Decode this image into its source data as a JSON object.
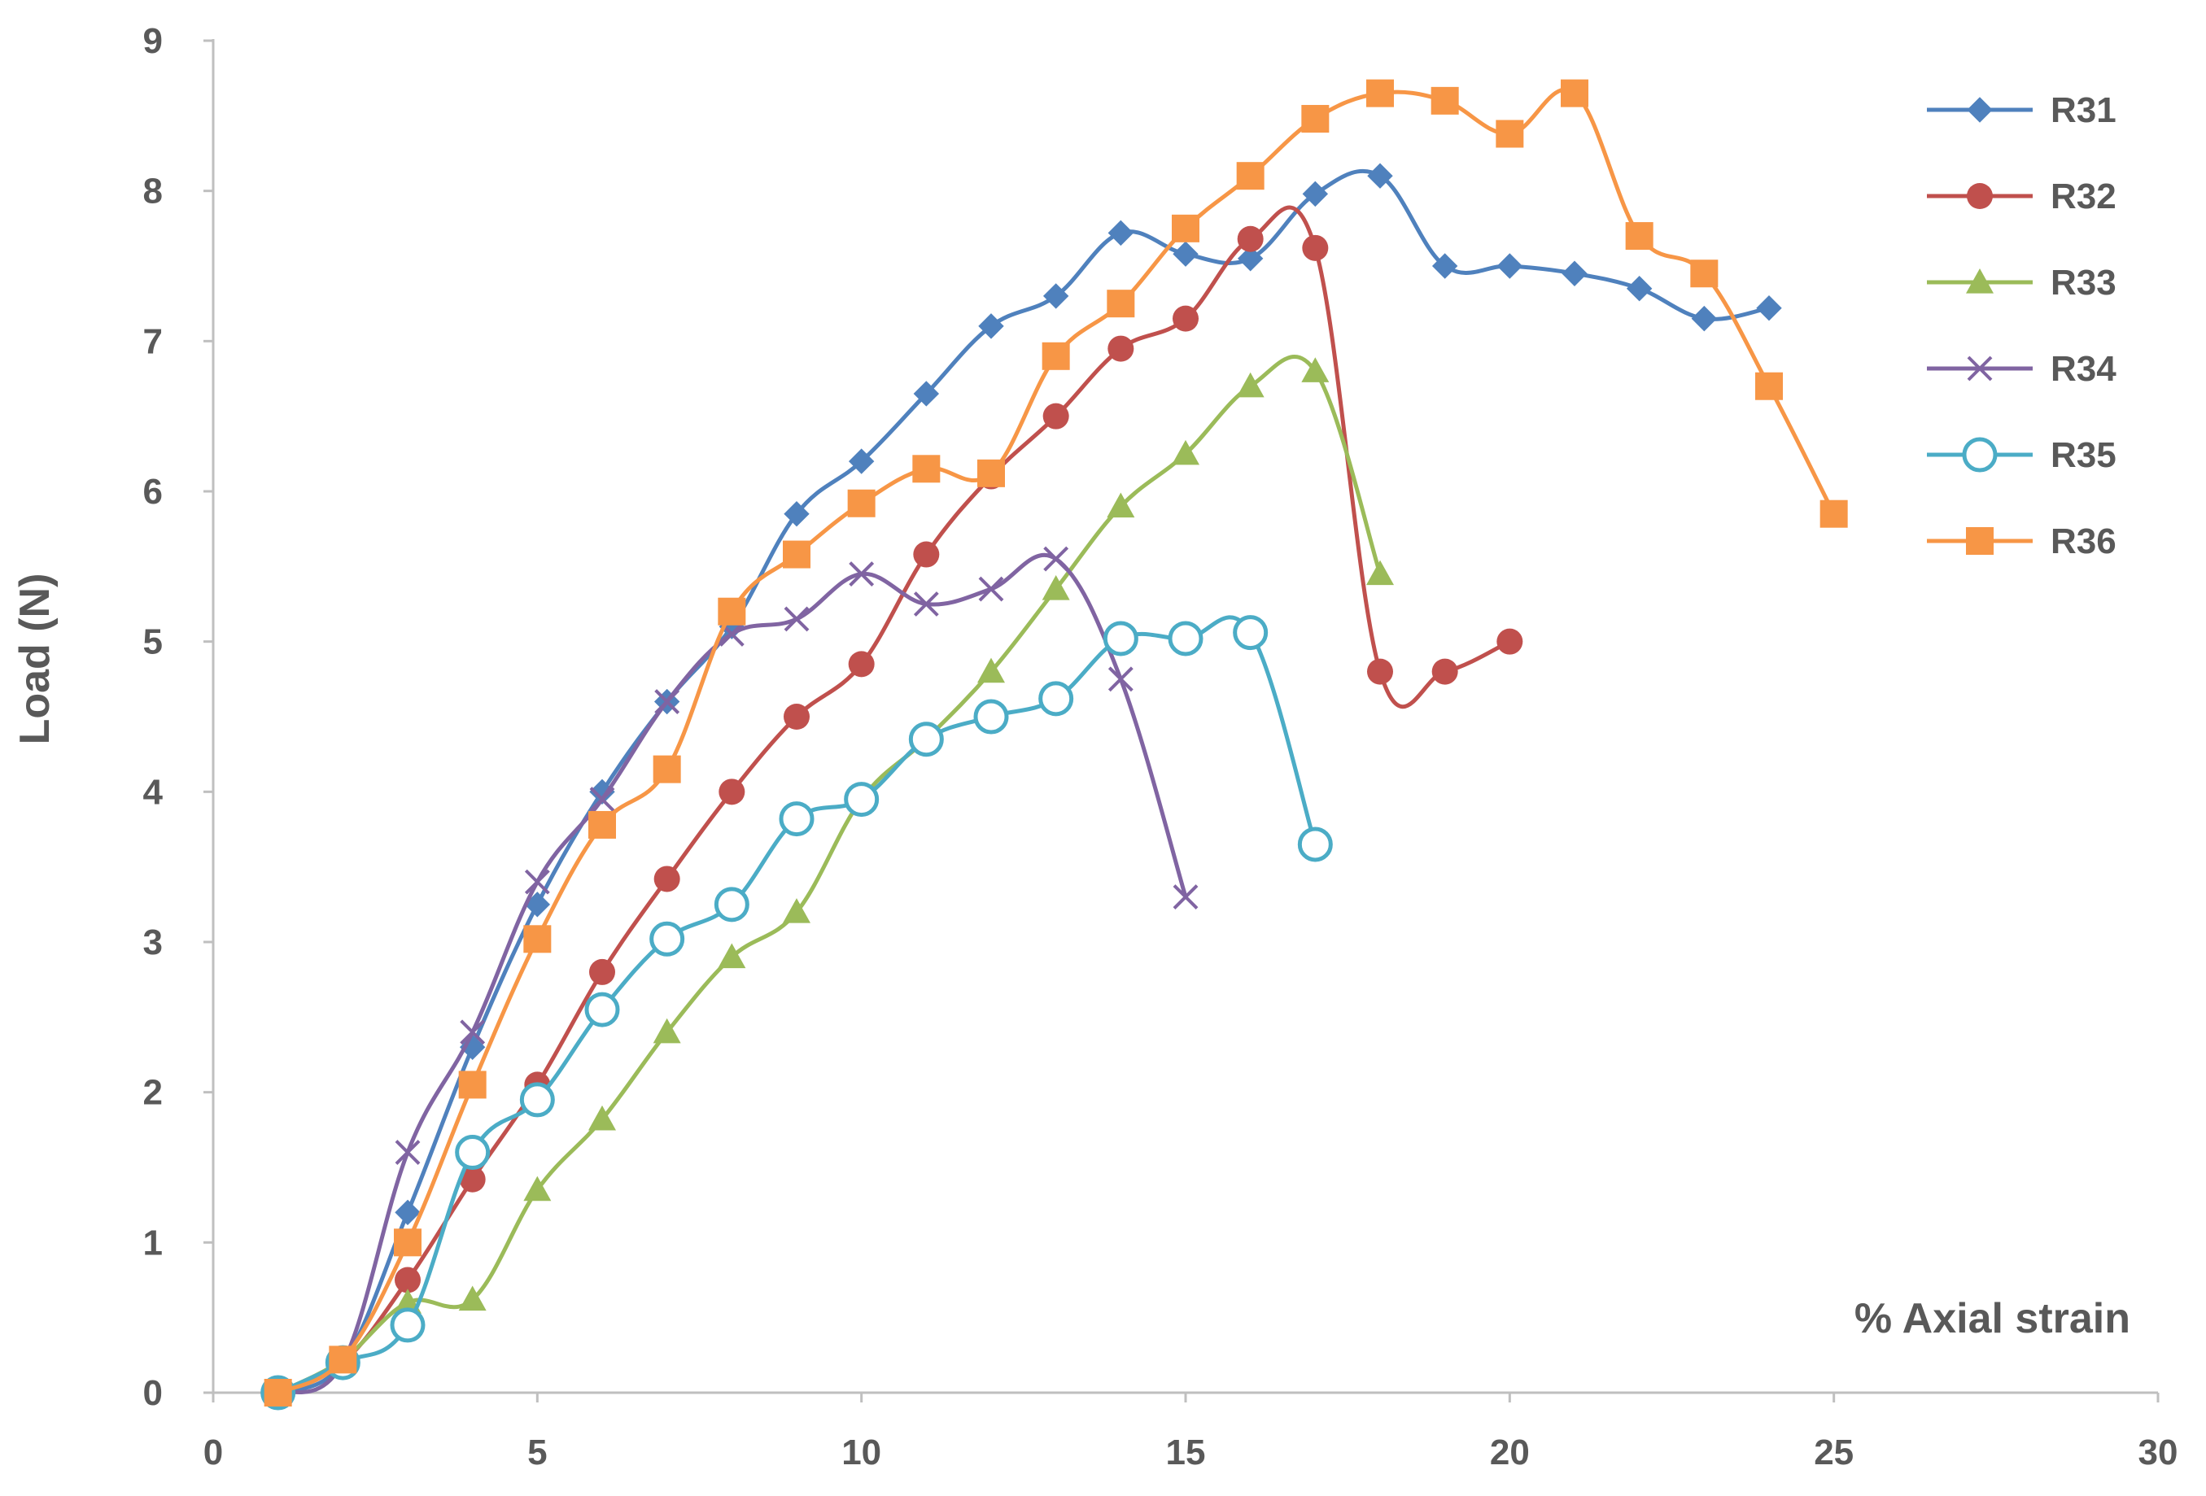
{
  "chart_data": {
    "type": "line",
    "title": "",
    "xlabel": "% Axial strain",
    "ylabel": "Load (N)",
    "xlim": [
      0,
      30
    ],
    "ylim": [
      0,
      9
    ],
    "xticks": [
      0,
      5,
      10,
      15,
      20,
      25,
      30
    ],
    "yticks": [
      0,
      1,
      2,
      3,
      4,
      5,
      6,
      7,
      8,
      9
    ],
    "grid": false,
    "legend_position": "top-right",
    "series": [
      {
        "name": "R31",
        "color": "#4f81bd",
        "marker": "diamond",
        "x": [
          1,
          2,
          3,
          4,
          5,
          6,
          7,
          8,
          9,
          10,
          11,
          12,
          13,
          14,
          15,
          16,
          17,
          18,
          19,
          20,
          21,
          22,
          23,
          24
        ],
        "y": [
          0,
          0.2,
          1.2,
          2.3,
          3.25,
          4.0,
          4.6,
          5.1,
          5.85,
          6.2,
          6.65,
          7.1,
          7.3,
          7.72,
          7.58,
          7.55,
          7.98,
          8.1,
          7.5,
          7.5,
          7.45,
          7.35,
          7.15,
          7.22
        ]
      },
      {
        "name": "R32",
        "color": "#c0504d",
        "marker": "circle",
        "x": [
          1,
          2,
          3,
          4,
          5,
          6,
          7,
          8,
          9,
          10,
          11,
          12,
          13,
          14,
          15,
          16,
          17,
          18,
          19,
          20
        ],
        "y": [
          0,
          0.2,
          0.75,
          1.42,
          2.05,
          2.8,
          3.42,
          4.0,
          4.5,
          4.85,
          5.58,
          6.1,
          6.5,
          6.95,
          7.15,
          7.68,
          7.62,
          4.8,
          4.8,
          5.0
        ]
      },
      {
        "name": "R33",
        "color": "#9bbb59",
        "marker": "triangle",
        "x": [
          1,
          2,
          3,
          4,
          5,
          6,
          7,
          8,
          9,
          10,
          11,
          12,
          13,
          14,
          15,
          16,
          17,
          18
        ],
        "y": [
          0,
          0.22,
          0.6,
          0.62,
          1.35,
          1.82,
          2.4,
          2.9,
          3.2,
          3.95,
          4.35,
          4.8,
          5.35,
          5.9,
          6.25,
          6.7,
          6.8,
          5.45
        ]
      },
      {
        "name": "R34",
        "color": "#8064a2",
        "marker": "x",
        "x": [
          1,
          2,
          3,
          4,
          5,
          6,
          7,
          8,
          9,
          10,
          11,
          12,
          13,
          14,
          15
        ],
        "y": [
          0,
          0.2,
          1.6,
          2.4,
          3.4,
          3.95,
          4.6,
          5.05,
          5.15,
          5.45,
          5.25,
          5.35,
          5.55,
          4.75,
          3.3
        ]
      },
      {
        "name": "R35",
        "color": "#4bacc6",
        "marker": "open-circle",
        "x": [
          1,
          2,
          3,
          4,
          5,
          6,
          7,
          8,
          9,
          10,
          11,
          12,
          13,
          14,
          15,
          16,
          17
        ],
        "y": [
          0,
          0.2,
          0.45,
          1.6,
          1.95,
          2.55,
          3.02,
          3.25,
          3.82,
          3.95,
          4.35,
          4.5,
          4.62,
          5.02,
          5.02,
          5.06,
          3.65
        ]
      },
      {
        "name": "R36",
        "color": "#f79646",
        "marker": "square",
        "x": [
          1,
          2,
          3,
          4,
          5,
          6,
          7,
          8,
          9,
          10,
          11,
          12,
          13,
          14,
          15,
          16,
          17,
          18,
          19,
          20,
          21,
          22,
          23,
          24,
          25
        ],
        "y": [
          0,
          0.22,
          1.0,
          2.05,
          3.02,
          3.78,
          4.15,
          5.2,
          5.58,
          5.92,
          6.15,
          6.12,
          6.9,
          7.25,
          7.75,
          8.1,
          8.48,
          8.65,
          8.6,
          8.38,
          8.65,
          7.7,
          7.45,
          6.7,
          5.85
        ]
      }
    ]
  }
}
